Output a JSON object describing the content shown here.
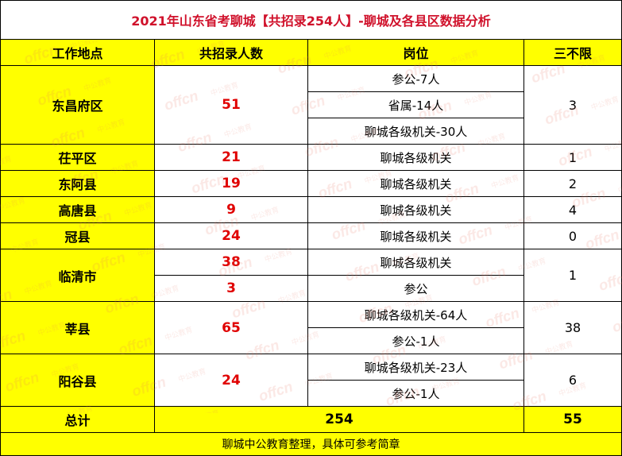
{
  "title": "2021年山东省考聊城【共招录254人】-聊城及各县区数据分析",
  "headers": {
    "location": "工作地点",
    "count": "共招录人数",
    "position": "岗位",
    "unlimited": "三不限"
  },
  "rows": {
    "dongchangfu": {
      "location": "东昌府区",
      "count": "51",
      "positions": [
        "参公-7人",
        "省属-14人",
        "聊城各级机关-30人"
      ],
      "unlimited": "3"
    },
    "chiping": {
      "location": "茌平区",
      "count": "21",
      "position": "聊城各级机关",
      "unlimited": "1"
    },
    "donge": {
      "location": "东阿县",
      "count": "19",
      "position": "聊城各级机关",
      "unlimited": "2"
    },
    "gaotang": {
      "location": "高唐县",
      "count": "9",
      "position": "聊城各级机关",
      "unlimited": "4"
    },
    "guanxian": {
      "location": "冠县",
      "count": "24",
      "position": "聊城各级机关",
      "unlimited": "0"
    },
    "linqing": {
      "location": "临清市",
      "counts": [
        "38",
        "3"
      ],
      "positions": [
        "聊城各级机关",
        "参公"
      ],
      "unlimited": "1"
    },
    "shenxian": {
      "location": "莘县",
      "count": "65",
      "positions": [
        "聊城各级机关-64人",
        "参公-1人"
      ],
      "unlimited": "38"
    },
    "yanggu": {
      "location": "阳谷县",
      "count": "24",
      "positions": [
        "聊城各级机关-23人",
        "参公-1人"
      ],
      "unlimited": "6"
    }
  },
  "total": {
    "label": "总计",
    "count": "254",
    "unlimited": "55"
  },
  "footer": "聊城中公教育整理，具体可参考简章",
  "colors": {
    "title": "#d0112b",
    "highlight": "#ffff00",
    "count": "#e00000"
  }
}
